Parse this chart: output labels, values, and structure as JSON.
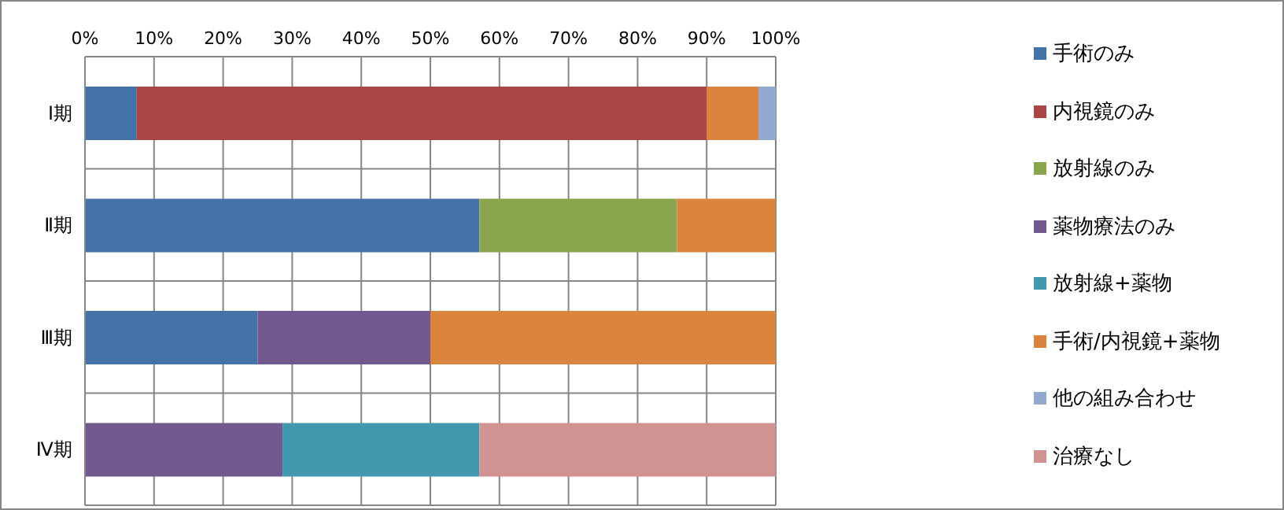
{
  "chart_data": {
    "type": "bar",
    "orientation": "horizontal",
    "stacked": true,
    "categories": [
      "Ⅰ期",
      "Ⅱ期",
      "Ⅲ期",
      "Ⅳ期"
    ],
    "series": [
      {
        "name": "手術のみ",
        "color": "#4572a7",
        "values": [
          7.5,
          57.1,
          25,
          null
        ]
      },
      {
        "name": "内視鏡のみ",
        "color": "#aa4643",
        "values": [
          82.5,
          null,
          null,
          null
        ]
      },
      {
        "name": "放射線のみ",
        "color": "#89a54e",
        "values": [
          null,
          28.6,
          null,
          null
        ]
      },
      {
        "name": "薬物療法のみ",
        "color": "#71588f",
        "values": [
          null,
          null,
          25,
          28.6
        ]
      },
      {
        "name": "放射線+薬物",
        "color": "#4198af",
        "values": [
          null,
          null,
          null,
          28.5
        ]
      },
      {
        "name": "手術/内視鏡+薬物",
        "color": "#db843d",
        "values": [
          7.5,
          14.3,
          50,
          null
        ]
      },
      {
        "name": "他の組み合わせ",
        "color": "#93a9cf",
        "values": [
          2.5,
          null,
          null,
          null
        ]
      },
      {
        "name": "治療なし",
        "color": "#d19392",
        "values": [
          null,
          null,
          null,
          42.9
        ]
      }
    ],
    "xlim": [
      0,
      100
    ],
    "xticks": [
      {
        "value": 0,
        "label": "0%"
      },
      {
        "value": 10,
        "label": "10%"
      },
      {
        "value": 20,
        "label": "20%"
      },
      {
        "value": 30,
        "label": "30%"
      },
      {
        "value": 40,
        "label": "40%"
      },
      {
        "value": 50,
        "label": "50%"
      },
      {
        "value": 60,
        "label": "60%"
      },
      {
        "value": 70,
        "label": "70%"
      },
      {
        "value": 80,
        "label": "80%"
      },
      {
        "value": 90,
        "label": "90%"
      },
      {
        "value": 100,
        "label": "100%"
      }
    ],
    "grid": true,
    "legend": "right"
  }
}
